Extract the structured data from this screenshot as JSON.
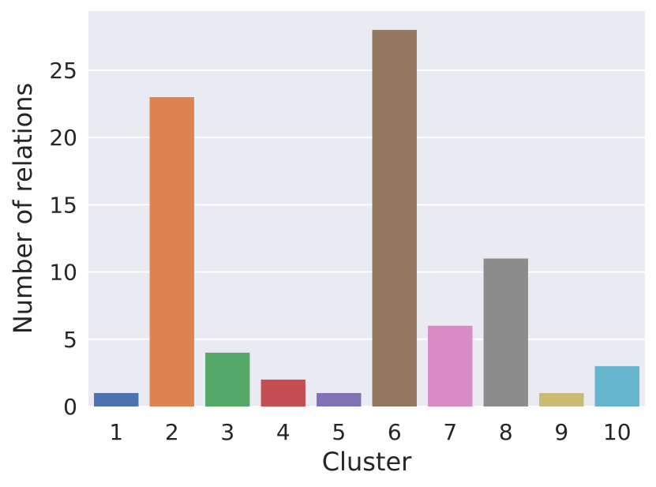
{
  "chart_data": {
    "type": "bar",
    "categories": [
      "1",
      "2",
      "3",
      "4",
      "5",
      "6",
      "7",
      "8",
      "9",
      "10"
    ],
    "values": [
      1,
      23,
      4,
      2,
      1,
      28,
      6,
      11,
      1,
      3
    ],
    "colors": [
      "#4c72b0",
      "#dd8452",
      "#55a868",
      "#c44e52",
      "#8172b3",
      "#937860",
      "#da8bc3",
      "#8c8c8c",
      "#ccb974",
      "#64b5cd"
    ],
    "xlabel": "Cluster",
    "ylabel": "Number of relations",
    "ylim": [
      0,
      29.4
    ],
    "yticks": [
      0,
      5,
      10,
      15,
      20,
      25
    ],
    "grid": true,
    "background": "#eaeaf2"
  }
}
